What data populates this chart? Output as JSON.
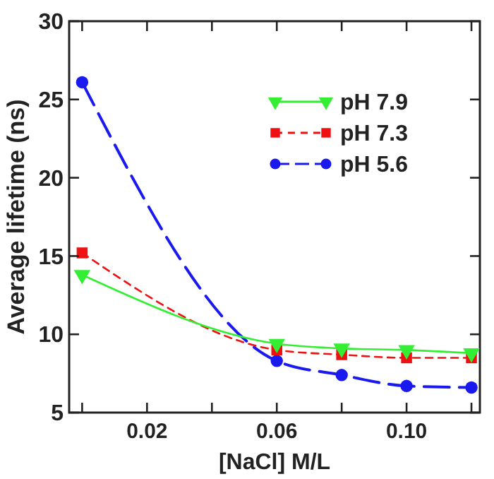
{
  "chart_data": {
    "type": "line",
    "xlabel": "[NaCl] M/L",
    "ylabel": "Average lifetime (ns)",
    "x": [
      0,
      0.06,
      0.08,
      0.1,
      0.12
    ],
    "series": [
      {
        "name": "pH 7.9",
        "color": "#33ee33",
        "values": [
          13.8,
          9.4,
          9.1,
          9.0,
          8.8
        ],
        "marker": "triangle",
        "line_style": "solid"
      },
      {
        "name": "pH 7.3",
        "color": "#ee1111",
        "values": [
          15.2,
          9.0,
          8.7,
          8.5,
          8.5
        ],
        "marker": "square",
        "line_style": "dashed"
      },
      {
        "name": "pH 5.6",
        "color": "#1a1aee",
        "values": [
          26.1,
          8.3,
          7.4,
          6.7,
          6.6
        ],
        "marker": "circle",
        "line_style": "dashed"
      }
    ],
    "xlim": [
      -0.004,
      0.1226
    ],
    "ylim": [
      5,
      30
    ],
    "xticks": [
      {
        "value": 0,
        "label": null
      },
      0.02,
      {
        "value": 0.04,
        "label": null
      },
      0.06,
      {
        "value": 0.08,
        "label": null
      },
      {
        "value": 0.1,
        "label": "0.10"
      },
      {
        "value": 0.12,
        "label": null
      }
    ],
    "yticks": [
      5,
      10,
      15,
      20,
      25,
      30
    ],
    "legend": "top right",
    "grid": false
  }
}
